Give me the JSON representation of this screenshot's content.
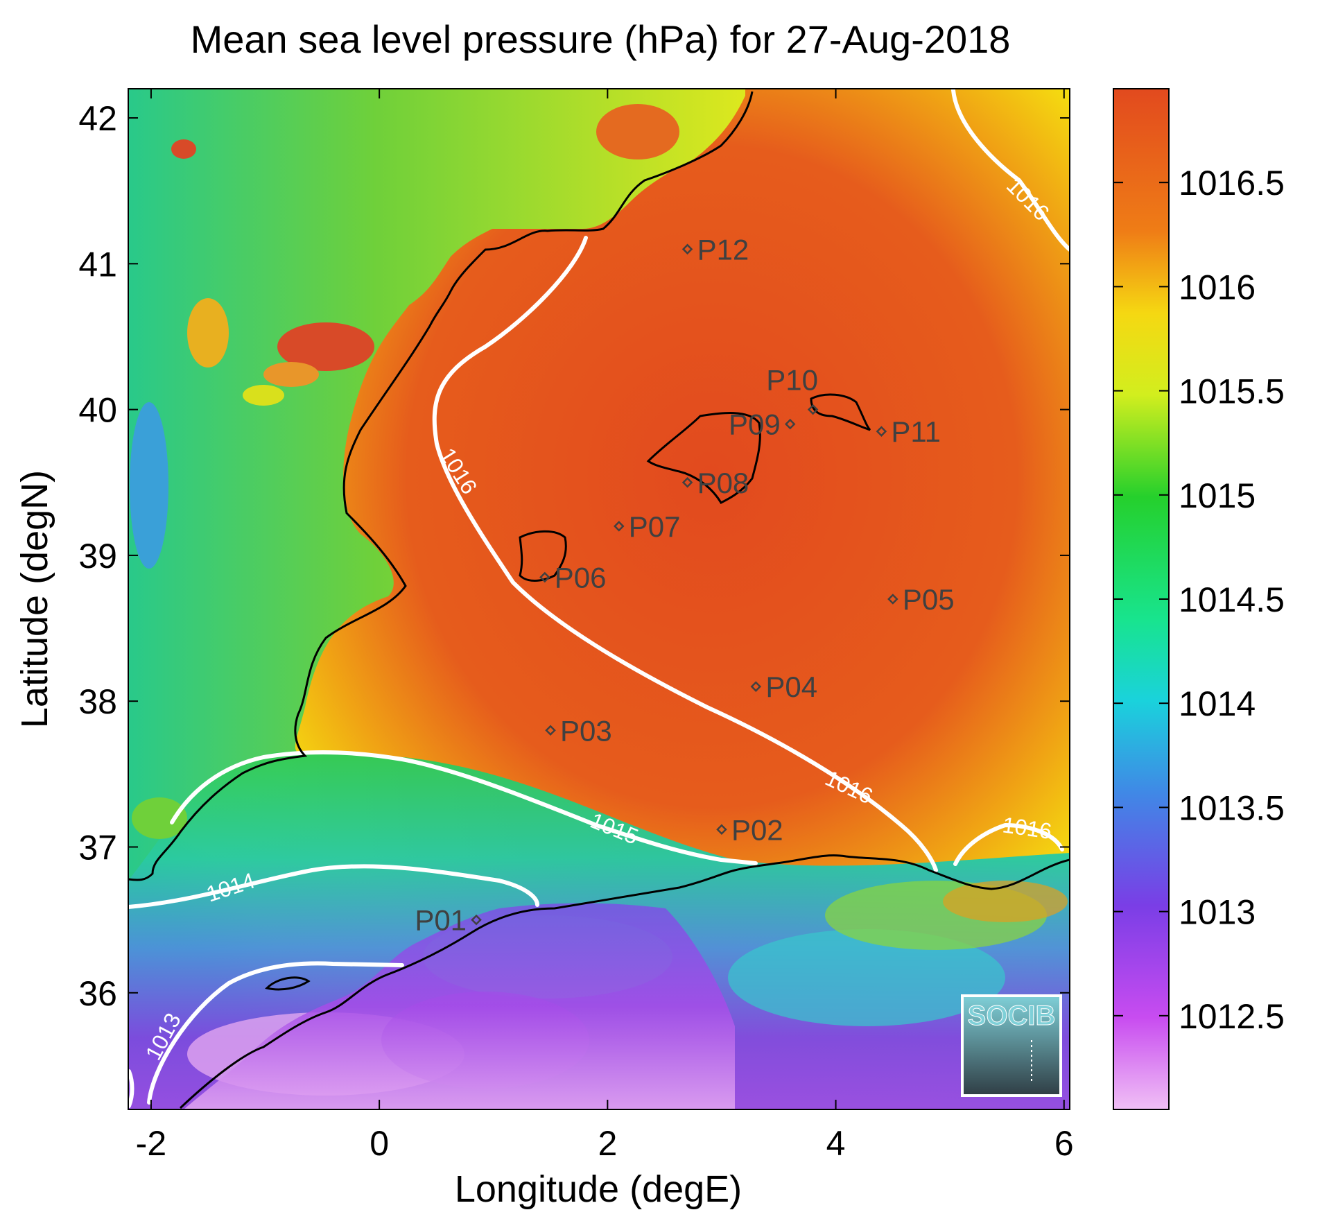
{
  "title": "Mean sea level pressure (hPa) for 27-Aug-2018",
  "xlabel": "Longitude (degE)",
  "ylabel": "Latitude (degN)",
  "xticks": [
    "-2",
    "0",
    "2",
    "4",
    "6"
  ],
  "yticks": [
    "36",
    "37",
    "38",
    "39",
    "40",
    "41",
    "42"
  ],
  "colorbar": {
    "ticks": [
      "1012.5",
      "1013",
      "1013.5",
      "1014",
      "1014.5",
      "1015",
      "1015.5",
      "1016",
      "1016.5"
    ],
    "range_hpa": [
      1012.05,
      1016.95
    ]
  },
  "contour_labels": [
    {
      "text": "1013"
    },
    {
      "text": "1014"
    },
    {
      "text": "1015"
    },
    {
      "text": "1016"
    },
    {
      "text": "1016"
    },
    {
      "text": "1016"
    },
    {
      "text": "1016"
    }
  ],
  "stations": [
    {
      "name": "P01",
      "lon": 0.85,
      "lat": 36.5
    },
    {
      "name": "P02",
      "lon": 3.0,
      "lat": 37.12
    },
    {
      "name": "P03",
      "lon": 1.5,
      "lat": 37.8
    },
    {
      "name": "P04",
      "lon": 3.3,
      "lat": 38.1
    },
    {
      "name": "P05",
      "lon": 4.5,
      "lat": 38.7
    },
    {
      "name": "P06",
      "lon": 1.45,
      "lat": 38.85
    },
    {
      "name": "P07",
      "lon": 2.1,
      "lat": 39.2
    },
    {
      "name": "P08",
      "lon": 2.7,
      "lat": 39.5
    },
    {
      "name": "P09",
      "lon": 3.6,
      "lat": 39.9
    },
    {
      "name": "P10",
      "lon": 3.8,
      "lat": 40.0
    },
    {
      "name": "P11",
      "lon": 4.4,
      "lat": 39.85
    },
    {
      "name": "P12",
      "lon": 2.7,
      "lat": 41.1
    }
  ],
  "logo": {
    "text": "SOCIB"
  },
  "colors": {
    "coastline": "#000000",
    "contour": "#ffffff",
    "station_marker": "#404040"
  }
}
